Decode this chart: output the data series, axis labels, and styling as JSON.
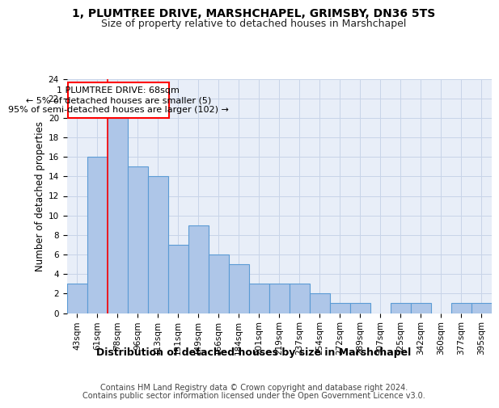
{
  "title": "1, PLUMTREE DRIVE, MARSHCHAPEL, GRIMSBY, DN36 5TS",
  "subtitle": "Size of property relative to detached houses in Marshchapel",
  "xlabel": "Distribution of detached houses by size in Marshchapel",
  "ylabel": "Number of detached properties",
  "categories": [
    "43sqm",
    "61sqm",
    "78sqm",
    "96sqm",
    "113sqm",
    "131sqm",
    "149sqm",
    "166sqm",
    "184sqm",
    "201sqm",
    "219sqm",
    "237sqm",
    "254sqm",
    "272sqm",
    "289sqm",
    "307sqm",
    "325sqm",
    "342sqm",
    "360sqm",
    "377sqm",
    "395sqm"
  ],
  "values": [
    3,
    16,
    20,
    15,
    14,
    7,
    9,
    6,
    5,
    3,
    3,
    3,
    2,
    1,
    1,
    0,
    1,
    1,
    0,
    1,
    1
  ],
  "bar_color": "#aec6e8",
  "bar_edge_color": "#5b9bd5",
  "bar_linewidth": 0.8,
  "grid_color": "#c8d4e8",
  "bg_color": "#e8eef8",
  "red_line_x": 1.5,
  "annotation_line1": "1 PLUMTREE DRIVE: 68sqm",
  "annotation_line2": "← 5% of detached houses are smaller (5)",
  "annotation_line3": "95% of semi-detached houses are larger (102) →",
  "ylim": [
    0,
    24
  ],
  "yticks": [
    0,
    2,
    4,
    6,
    8,
    10,
    12,
    14,
    16,
    18,
    20,
    22,
    24
  ],
  "footer_line1": "Contains HM Land Registry data © Crown copyright and database right 2024.",
  "footer_line2": "Contains public sector information licensed under the Open Government Licence v3.0.",
  "title_fontsize": 10,
  "subtitle_fontsize": 9,
  "xlabel_fontsize": 9,
  "ylabel_fontsize": 8.5,
  "tick_fontsize": 7.5,
  "annotation_fontsize": 8,
  "footer_fontsize": 7
}
